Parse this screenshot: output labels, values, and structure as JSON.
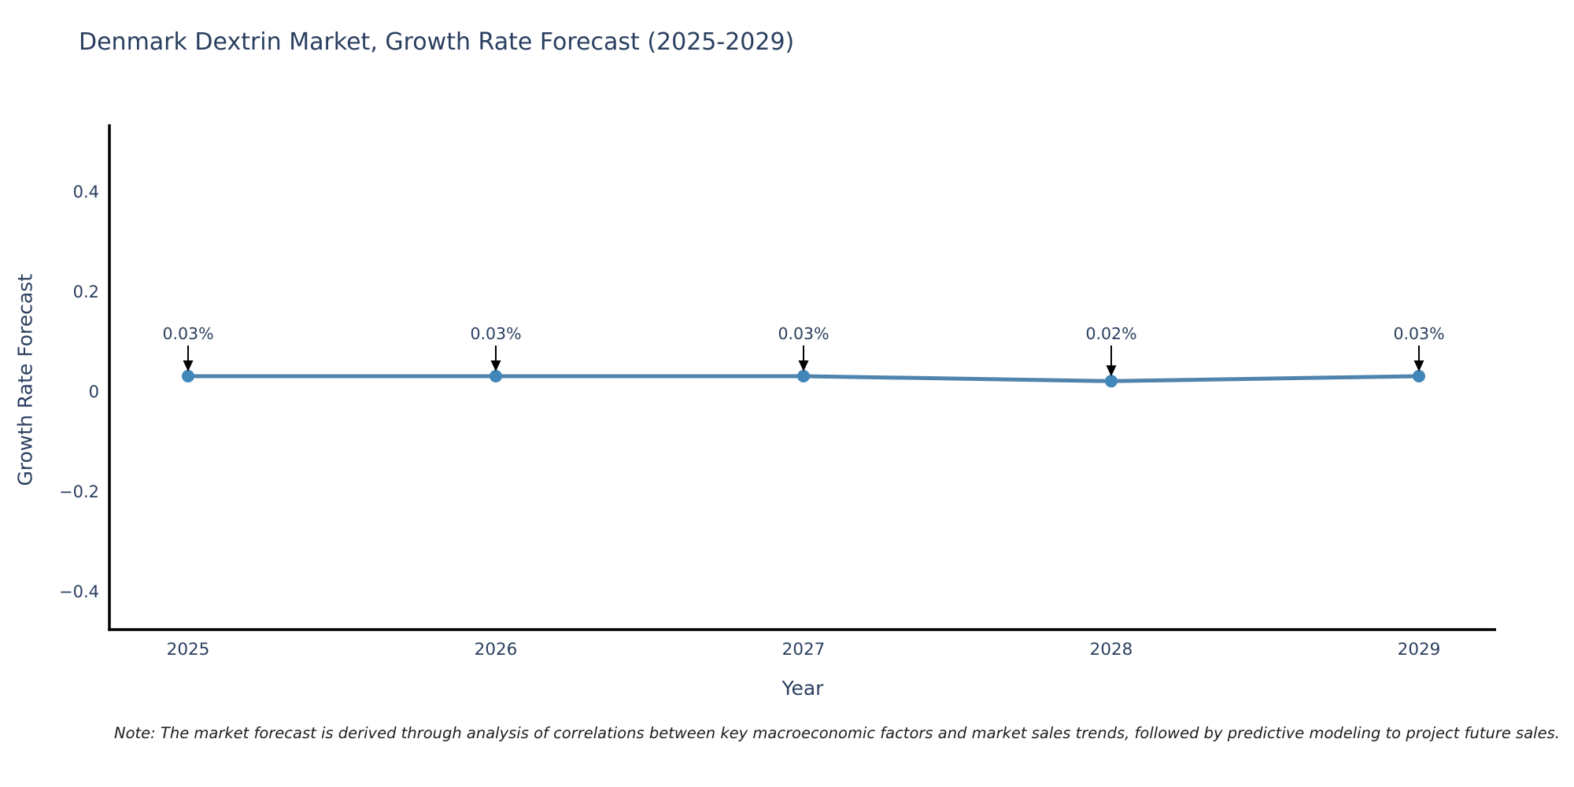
{
  "chart": {
    "title": "Denmark Dextrin Market, Growth Rate Forecast (2025-2029)",
    "note": "Note: The market forecast is derived through analysis of correlations between key macroeconomic factors and market sales trends, followed by predictive modeling to project future sales."
  },
  "chart_data": {
    "type": "line",
    "title": "Denmark Dextrin Market, Growth Rate Forecast (2025-2029)",
    "xlabel": "Year",
    "ylabel": "Growth Rate Forecast",
    "categories": [
      "2025",
      "2026",
      "2027",
      "2028",
      "2029"
    ],
    "values": [
      0.03,
      0.03,
      0.03,
      0.02,
      0.03
    ],
    "point_labels": [
      "0.03%",
      "0.03%",
      "0.03%",
      "0.02%",
      "0.03%"
    ],
    "y_ticks": [
      {
        "value": 0.4,
        "label": "0.4"
      },
      {
        "value": 0.2,
        "label": "0.2"
      },
      {
        "value": 0,
        "label": "0"
      },
      {
        "value": -0.2,
        "label": "−0.2"
      },
      {
        "value": -0.4,
        "label": "−0.4"
      }
    ],
    "ylim": [
      -0.48,
      0.53
    ],
    "grid": false,
    "legend": false,
    "colors": {
      "line": "#4e84ad",
      "marker": "#4287b9",
      "axis": "#000000",
      "text": "#2a3f5f",
      "arrow": "#000000"
    }
  }
}
